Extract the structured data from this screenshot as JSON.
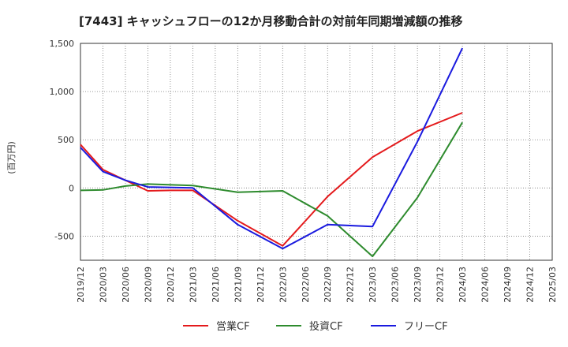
{
  "chart_data": {
    "type": "line",
    "title": "[7443]  キャッシュフローの12か月移動合計の対前年同期増減額の推移",
    "ylabel": "(百万円)",
    "xlabel": "",
    "ylim": [
      -750,
      1500
    ],
    "yticks": [
      -500,
      0,
      500,
      1000,
      1500
    ],
    "ytick_labels": [
      "-500",
      "0",
      "500",
      "1,000",
      "1,500"
    ],
    "categories": [
      "2019/12",
      "2020/03",
      "2020/06",
      "2020/09",
      "2020/12",
      "2021/03",
      "2021/06",
      "2021/09",
      "2021/12",
      "2022/03",
      "2022/06",
      "2022/09",
      "2022/12",
      "2023/03",
      "2023/06",
      "2023/09",
      "2023/12",
      "2024/03",
      "2024/06",
      "2024/09",
      "2024/12",
      "2025/03"
    ],
    "grid": true,
    "legend_position": "bottom",
    "series": [
      {
        "name": "営業CF",
        "color": "#e41a1c",
        "values": [
          450,
          190,
          80,
          -30,
          -25,
          -25,
          null,
          -340,
          null,
          -600,
          null,
          -90,
          null,
          320,
          null,
          590,
          null,
          780,
          null,
          null,
          null,
          null
        ]
      },
      {
        "name": "投資CF",
        "color": "#2e8b2e",
        "values": [
          -25,
          -20,
          20,
          40,
          null,
          25,
          null,
          -45,
          null,
          -30,
          null,
          -290,
          null,
          -710,
          null,
          -100,
          null,
          680,
          null,
          null,
          null,
          null
        ]
      },
      {
        "name": "フリーCF",
        "color": "#1a1adf",
        "values": [
          420,
          170,
          80,
          10,
          null,
          0,
          null,
          -380,
          null,
          -630,
          null,
          -380,
          null,
          -400,
          null,
          480,
          null,
          1450,
          null,
          null,
          null,
          null
        ]
      }
    ]
  }
}
